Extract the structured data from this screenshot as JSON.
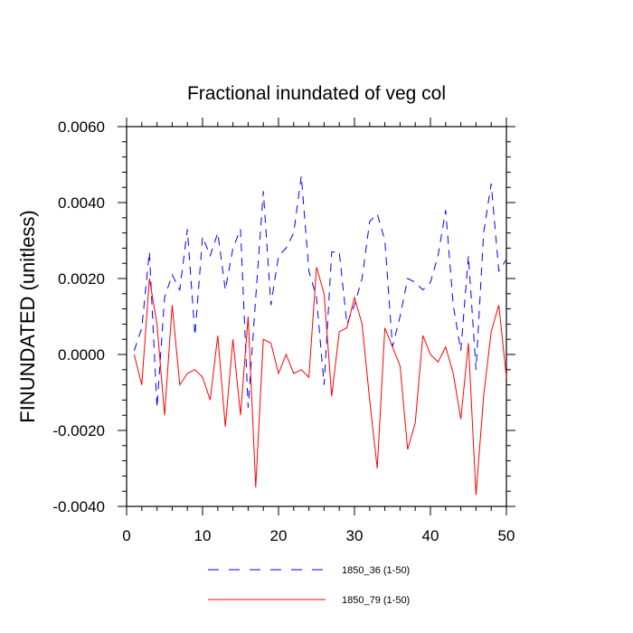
{
  "chart_data": {
    "type": "line",
    "title": "Fractional inundated of veg col",
    "xlabel": "",
    "ylabel": "FINUNDATED  (unitless)",
    "xlim": [
      0,
      50
    ],
    "ylim": [
      -0.004,
      0.006
    ],
    "xticks": [
      "0",
      "10",
      "20",
      "30",
      "40",
      "50"
    ],
    "yticks": [
      "-0.0040",
      "-0.0020",
      "0.0000",
      "0.0020",
      "0.0040",
      "0.0060"
    ],
    "grid": false,
    "legend_position": "bottom",
    "series": [
      {
        "name": "1850_36 (1-50)",
        "color": "#0000ff",
        "style": "dashed",
        "x": [
          1,
          2,
          3,
          4,
          5,
          6,
          7,
          8,
          9,
          10,
          11,
          12,
          13,
          14,
          15,
          16,
          17,
          18,
          19,
          20,
          21,
          22,
          23,
          24,
          25,
          26,
          27,
          28,
          29,
          30,
          31,
          32,
          33,
          34,
          35,
          36,
          37,
          38,
          39,
          40,
          41,
          42,
          43,
          44,
          45,
          46,
          47,
          48,
          49,
          50
        ],
        "values": [
          0.0001,
          0.0007,
          0.0027,
          -0.0014,
          0.0015,
          0.0021,
          0.0017,
          0.0033,
          0.0005,
          0.0031,
          0.0026,
          0.0032,
          0.0017,
          0.0028,
          0.0033,
          -0.0014,
          0.0015,
          0.0043,
          0.0013,
          0.0026,
          0.0028,
          0.0032,
          0.0047,
          0.0022,
          0.0015,
          -0.0008,
          0.0027,
          0.0027,
          0.0008,
          0.0013,
          0.002,
          0.0035,
          0.0037,
          0.003,
          0.0002,
          0.001,
          0.002,
          0.0019,
          0.0017,
          0.0019,
          0.0026,
          0.0038,
          0.0013,
          0.0001,
          0.0026,
          -0.0004,
          0.0032,
          0.0045,
          0.0022,
          0.0025
        ]
      },
      {
        "name": "1850_79 (1-50)",
        "color": "#ff0000",
        "style": "solid",
        "x": [
          1,
          2,
          3,
          4,
          5,
          6,
          7,
          8,
          9,
          10,
          11,
          12,
          13,
          14,
          15,
          16,
          17,
          18,
          19,
          20,
          21,
          22,
          23,
          24,
          25,
          26,
          27,
          28,
          29,
          30,
          31,
          32,
          33,
          34,
          35,
          36,
          37,
          38,
          39,
          40,
          41,
          42,
          43,
          44,
          45,
          46,
          47,
          48,
          49,
          50
        ],
        "values": [
          0.0,
          -0.0008,
          0.002,
          0.0008,
          -0.0016,
          0.0013,
          -0.0008,
          -0.0005,
          -0.0004,
          -0.0006,
          -0.0012,
          0.0005,
          -0.0019,
          0.0004,
          -0.0016,
          0.001,
          -0.0035,
          0.0004,
          0.0003,
          -0.0005,
          0.0,
          -0.0005,
          -0.0004,
          -0.0006,
          0.0023,
          0.0016,
          -0.0011,
          0.0006,
          0.0007,
          0.0015,
          0.0008,
          -0.0012,
          -0.003,
          0.0007,
          0.0002,
          -0.0003,
          -0.0025,
          -0.0018,
          0.0005,
          0.0,
          -0.0002,
          0.0002,
          -0.0005,
          -0.0017,
          0.0003,
          -0.0037,
          -0.0011,
          0.0006,
          0.0013,
          -0.0006
        ]
      }
    ]
  }
}
